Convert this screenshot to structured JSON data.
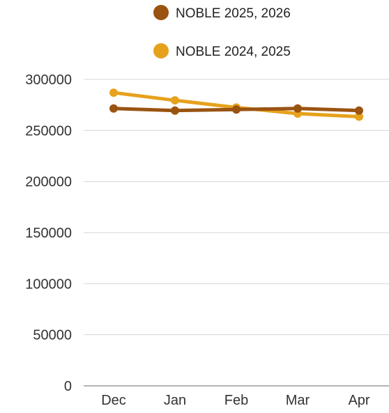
{
  "chart_data": {
    "type": "line",
    "categories": [
      "Dec",
      "Jan",
      "Feb",
      "Mar",
      "Apr"
    ],
    "series": [
      {
        "name": "NOBLE 2025, 2026",
        "color": "#9a5412",
        "values": [
          271500,
          269500,
          270500,
          271500,
          269500
        ]
      },
      {
        "name": "NOBLE 2024, 2025",
        "color": "#e6a21d",
        "values": [
          287000,
          279500,
          272500,
          266500,
          263500
        ]
      }
    ],
    "yticks": [
      "0",
      "50000",
      "100000",
      "150000",
      "200000",
      "250000",
      "300000"
    ],
    "ylim": [
      0,
      300000
    ],
    "grid": true,
    "legend_position": "top"
  }
}
